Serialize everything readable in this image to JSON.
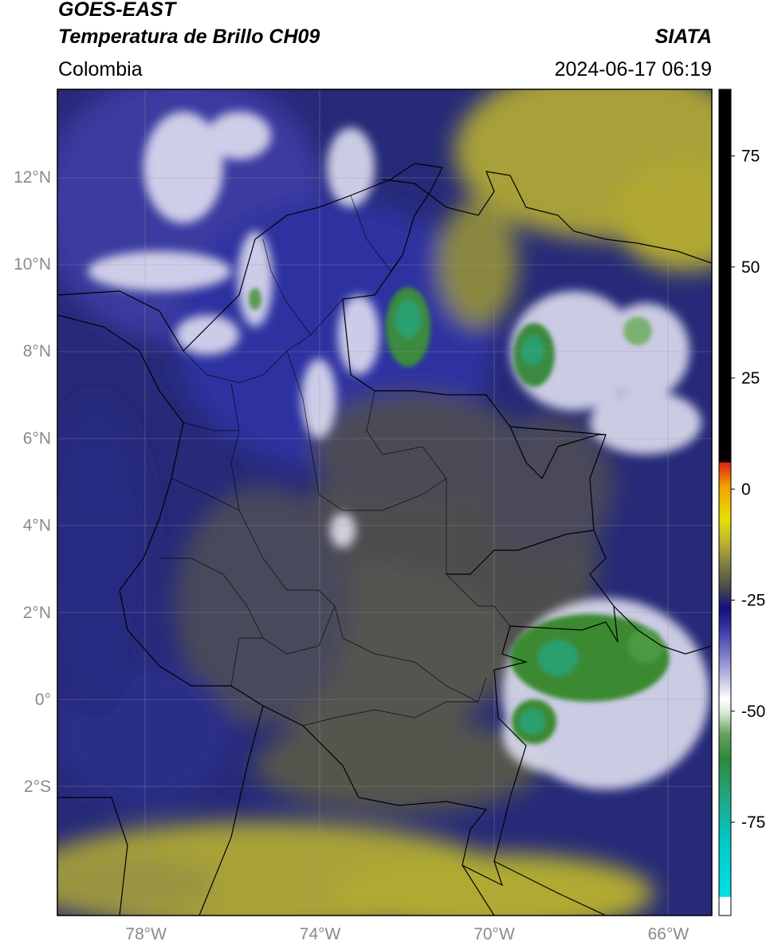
{
  "header": {
    "satellite": "GOES-EAST",
    "product": "Temperatura de Brillo CH09",
    "agency": "SIATA",
    "region": "Colombia",
    "timestamp": "2024-06-17 06:19"
  },
  "map": {
    "lat_ticks": [
      {
        "value": 12,
        "label": "12°N"
      },
      {
        "value": 10,
        "label": "10°N"
      },
      {
        "value": 8,
        "label": "8°N"
      },
      {
        "value": 6,
        "label": "6°N"
      },
      {
        "value": 4,
        "label": "4°N"
      },
      {
        "value": 2,
        "label": "2°N"
      },
      {
        "value": 0,
        "label": "0°"
      },
      {
        "value": -2,
        "label": "2°S"
      }
    ],
    "lon_ticks": [
      {
        "value": -78,
        "label": "78°W"
      },
      {
        "value": -74,
        "label": "74°W"
      },
      {
        "value": -70,
        "label": "70°W"
      },
      {
        "value": -66,
        "label": "66°W"
      }
    ]
  },
  "colorbar": {
    "ticks": [
      {
        "value": 75,
        "label": "75"
      },
      {
        "value": 50,
        "label": "50"
      },
      {
        "value": 25,
        "label": "25"
      },
      {
        "value": 0,
        "label": "0"
      },
      {
        "value": -25,
        "label": "-25"
      },
      {
        "value": -50,
        "label": "-50"
      },
      {
        "value": -75,
        "label": "-75"
      }
    ],
    "colors": {
      "warm": "#000000",
      "hot": "#e02010",
      "orange": "#f0a000",
      "yellow": "#e8e000",
      "olive": "#b8b030",
      "gray": "#505048",
      "navy": "#10107a",
      "blue": "#3a3aa8",
      "white": "#ffffff",
      "green": "#3a8a30",
      "teal": "#20a888",
      "cyan": "#00e0e0"
    }
  }
}
